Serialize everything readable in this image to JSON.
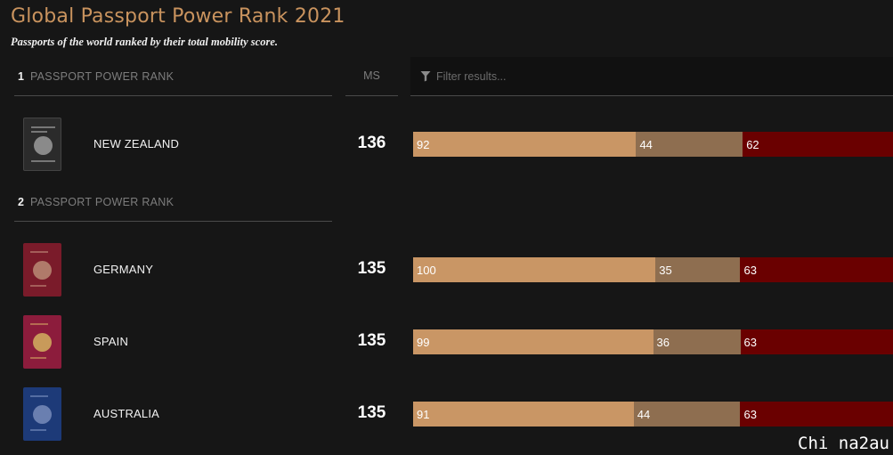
{
  "title": "Global Passport Power Rank 2021",
  "subtitle": "Passports of the world ranked by their total mobility score.",
  "columns": {
    "ms_label": "MS"
  },
  "filter": {
    "placeholder": "Filter results..."
  },
  "colors": {
    "visa_free": "#c99665",
    "visa_on_arrival": "#8e6e50",
    "visa_required": "#6a0000",
    "title": "#c9935e"
  },
  "groups": [
    {
      "rank_number": "1",
      "rank_label": "PASSPORT POWER RANK",
      "countries": [
        {
          "name": "NEW ZEALAND",
          "ms": "136",
          "passport_color": "#2b2b2b",
          "emblem_color": "#8a8a8a",
          "segments": [
            92,
            44,
            62
          ]
        }
      ]
    },
    {
      "rank_number": "2",
      "rank_label": "PASSPORT POWER RANK",
      "countries": [
        {
          "name": "GERMANY",
          "ms": "135",
          "passport_color": "#7a1b2a",
          "emblem_color": "#b07a6a",
          "segments": [
            100,
            35,
            63
          ]
        },
        {
          "name": "SPAIN",
          "ms": "135",
          "passport_color": "#8c1c3c",
          "emblem_color": "#c89a5a",
          "segments": [
            99,
            36,
            63
          ]
        },
        {
          "name": "AUSTRALIA",
          "ms": "135",
          "passport_color": "#1d3a78",
          "emblem_color": "#6a7fb0",
          "segments": [
            91,
            44,
            63
          ]
        }
      ]
    }
  ],
  "watermark": "Chi na2au"
}
